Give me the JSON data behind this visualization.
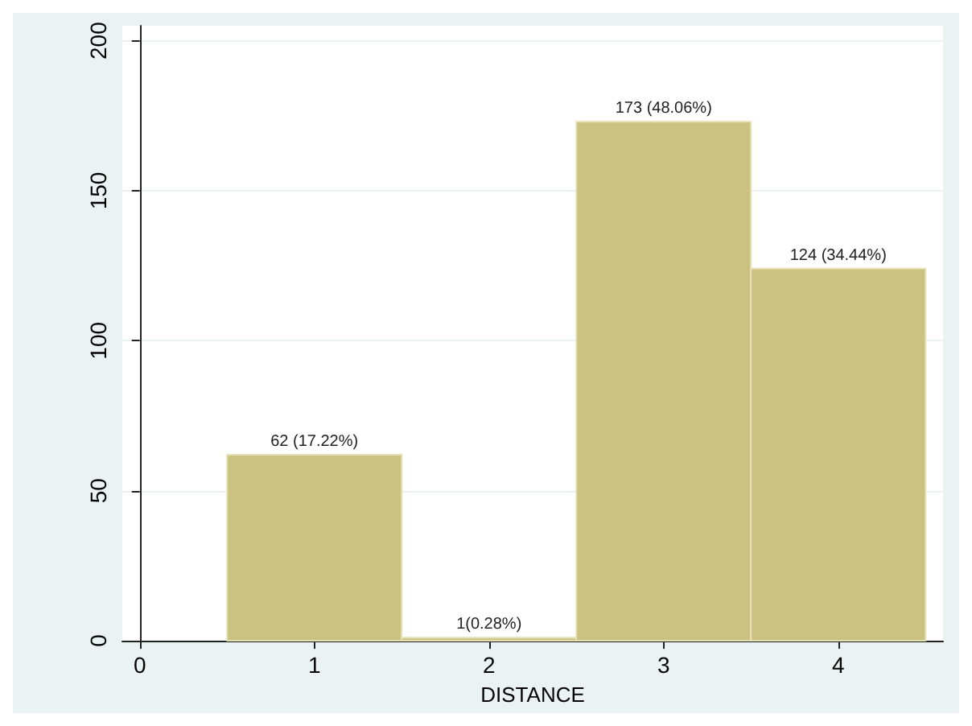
{
  "chart_data": {
    "type": "histogram",
    "xlabel": "DISTANCE",
    "bins": [
      0.5,
      1.5,
      2.5,
      3.5,
      4.5
    ],
    "values": [
      62,
      1,
      173,
      124
    ],
    "value_labels": [
      "62 (17.22%)",
      "1(0.28%)",
      "173 (48.06%)",
      "124 (34.44%)"
    ],
    "color": "#cbc281",
    "xlim": [
      -0.1,
      4.6
    ],
    "xticks": [
      0,
      1,
      2,
      3,
      4
    ],
    "ylim": [
      0,
      205
    ],
    "yticks": [
      0,
      50,
      100,
      150,
      200
    ],
    "grid": "y"
  }
}
